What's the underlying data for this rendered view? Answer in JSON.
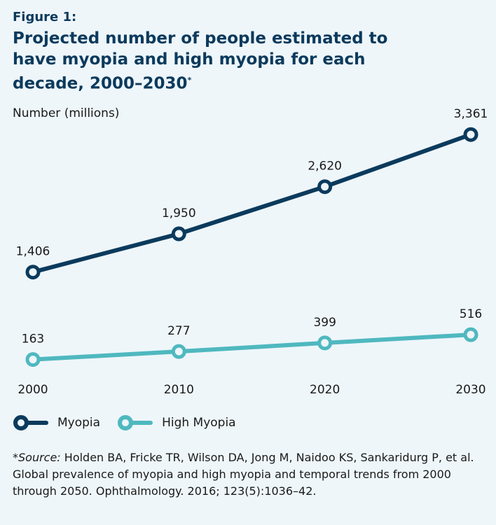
{
  "figure_label": "Figure 1:",
  "chart_data": {
    "type": "line",
    "title": "Projected number of people estimated to have myopia and high myopia for each decade, 2000–2030",
    "title_marker": "*",
    "ylabel": "Number (millions)",
    "x": [
      "2000",
      "2010",
      "2020",
      "2030"
    ],
    "ylim": [
      0,
      3500
    ],
    "grid": false,
    "legend_position": "bottom-left",
    "series": [
      {
        "name": "Myopia",
        "values": [
          1406,
          1950,
          2620,
          3361
        ],
        "labels": [
          "1,406",
          "1,950",
          "2,620",
          "3,361"
        ],
        "color": "#0b3a5c"
      },
      {
        "name": "High Myopia",
        "values": [
          163,
          277,
          399,
          516
        ],
        "labels": [
          "163",
          "277",
          "399",
          "516"
        ],
        "color": "#4fb8bf"
      }
    ]
  },
  "source": {
    "prefix": "*",
    "label": "Source:",
    "text": " Holden BA, Fricke TR, Wilson DA, Jong M, Naidoo KS, Sankaridurg P, et al. Global prevalence of myopia and high myopia and temporal trends from 2000 through 2050. Ophthalmology. 2016; 123(5):1036–42."
  }
}
